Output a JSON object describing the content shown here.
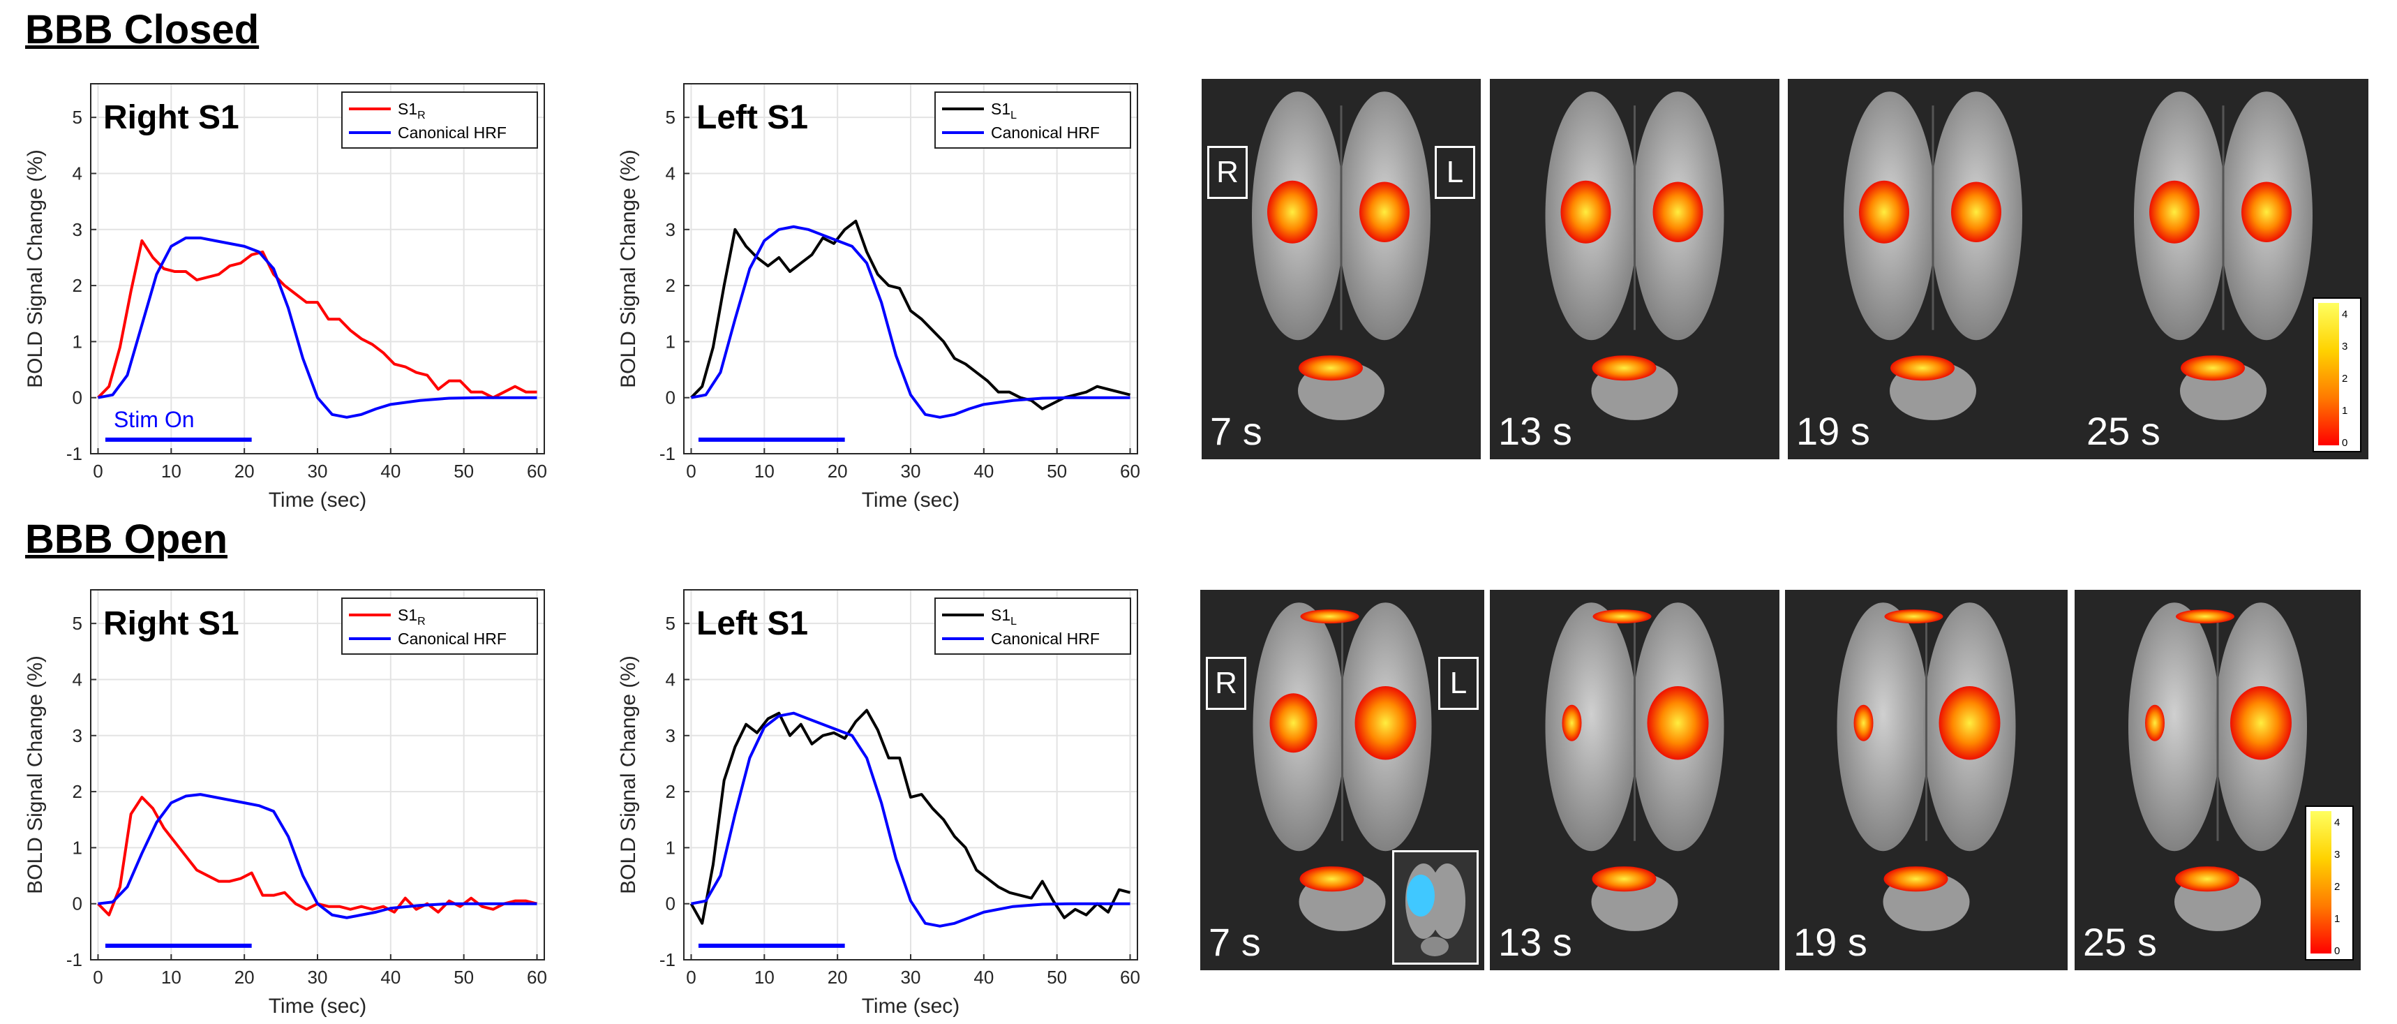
{
  "headings": {
    "closed": "BBB Closed",
    "open": "BBB Open"
  },
  "colors": {
    "red": "#ff0000",
    "blue": "#0000ff",
    "black": "#000000",
    "stim": "#0000ff"
  },
  "chart_data": [
    {
      "id": "closed-right",
      "type": "line",
      "panel_label": "Right S1",
      "xlabel": "Time (sec)",
      "ylabel": "BOLD Signal Change (%)",
      "xlim": [
        -1,
        61
      ],
      "ylim": [
        -1,
        5.6
      ],
      "xticks": [
        0,
        10,
        20,
        30,
        40,
        50,
        60
      ],
      "yticks": [
        -1,
        0,
        1,
        2,
        3,
        4,
        5
      ],
      "stim": {
        "start": 1,
        "end": 21,
        "y": -0.75,
        "label": "Stim On"
      },
      "series": [
        {
          "name": "S1",
          "sub": "R",
          "color": "#ff0000",
          "x": [
            0,
            1.5,
            3,
            4.5,
            6,
            7.5,
            9,
            10.5,
            12,
            13.5,
            15,
            16.5,
            18,
            19.5,
            21,
            22.5,
            24,
            25.5,
            27,
            28.5,
            30,
            31.5,
            33,
            34.5,
            36,
            37.5,
            39,
            40.5,
            42,
            43.5,
            45,
            46.5,
            48,
            49.5,
            51,
            52.5,
            54,
            55.5,
            57,
            58.5,
            60
          ],
          "y": [
            0,
            0.2,
            0.9,
            1.9,
            2.8,
            2.5,
            2.3,
            2.25,
            2.25,
            2.1,
            2.15,
            2.2,
            2.35,
            2.4,
            2.55,
            2.6,
            2.2,
            2.0,
            1.85,
            1.7,
            1.7,
            1.4,
            1.4,
            1.2,
            1.05,
            0.95,
            0.8,
            0.6,
            0.55,
            0.45,
            0.4,
            0.15,
            0.3,
            0.3,
            0.1,
            0.1,
            0.0,
            0.1,
            0.2,
            0.1,
            0.1
          ]
        },
        {
          "name": "Canonical HRF",
          "sub": "",
          "color": "#0000ff",
          "x": [
            0,
            2,
            4,
            6,
            8,
            10,
            12,
            14,
            16,
            18,
            20,
            22,
            24,
            26,
            28,
            30,
            32,
            34,
            36,
            38,
            40,
            44,
            48,
            52,
            56,
            60
          ],
          "y": [
            0,
            0.05,
            0.4,
            1.3,
            2.2,
            2.7,
            2.85,
            2.85,
            2.8,
            2.75,
            2.7,
            2.6,
            2.3,
            1.6,
            0.7,
            0.0,
            -0.3,
            -0.35,
            -0.3,
            -0.2,
            -0.12,
            -0.05,
            -0.01,
            0,
            0,
            0
          ]
        }
      ]
    },
    {
      "id": "closed-left",
      "type": "line",
      "panel_label": "Left S1",
      "xlabel": "Time (sec)",
      "ylabel": "BOLD Signal Change (%)",
      "xlim": [
        -1,
        61
      ],
      "ylim": [
        -1,
        5.6
      ],
      "xticks": [
        0,
        10,
        20,
        30,
        40,
        50,
        60
      ],
      "yticks": [
        -1,
        0,
        1,
        2,
        3,
        4,
        5
      ],
      "stim": {
        "start": 1,
        "end": 21,
        "y": -0.75,
        "label": ""
      },
      "series": [
        {
          "name": "S1",
          "sub": "L",
          "color": "#000000",
          "x": [
            0,
            1.5,
            3,
            4.5,
            6,
            7.5,
            9,
            10.5,
            12,
            13.5,
            15,
            16.5,
            18,
            19.5,
            21,
            22.5,
            24,
            25.5,
            27,
            28.5,
            30,
            31.5,
            33,
            34.5,
            36,
            37.5,
            39,
            40.5,
            42,
            43.5,
            45,
            46.5,
            48,
            49.5,
            51,
            52.5,
            54,
            55.5,
            57,
            58.5,
            60
          ],
          "y": [
            0,
            0.2,
            0.9,
            2.0,
            3.0,
            2.7,
            2.5,
            2.35,
            2.5,
            2.25,
            2.4,
            2.55,
            2.85,
            2.75,
            3.0,
            3.15,
            2.6,
            2.2,
            2.0,
            1.95,
            1.55,
            1.4,
            1.2,
            1.0,
            0.7,
            0.6,
            0.45,
            0.3,
            0.1,
            0.1,
            0.0,
            -0.05,
            -0.2,
            -0.1,
            0.0,
            0.05,
            0.1,
            0.2,
            0.15,
            0.1,
            0.05
          ]
        },
        {
          "name": "Canonical HRF",
          "sub": "",
          "color": "#0000ff",
          "x": [
            0,
            2,
            4,
            6,
            8,
            10,
            12,
            14,
            16,
            18,
            20,
            22,
            24,
            26,
            28,
            30,
            32,
            34,
            36,
            38,
            40,
            44,
            48,
            52,
            56,
            60
          ],
          "y": [
            0,
            0.05,
            0.45,
            1.4,
            2.3,
            2.8,
            3.0,
            3.05,
            3.0,
            2.9,
            2.8,
            2.7,
            2.4,
            1.7,
            0.75,
            0.05,
            -0.3,
            -0.35,
            -0.3,
            -0.2,
            -0.12,
            -0.05,
            -0.01,
            0,
            0,
            0
          ]
        }
      ]
    },
    {
      "id": "open-right",
      "type": "line",
      "panel_label": "Right S1",
      "xlabel": "Time (sec)",
      "ylabel": "BOLD Signal Change (%)",
      "xlim": [
        -1,
        61
      ],
      "ylim": [
        -1,
        5.6
      ],
      "xticks": [
        0,
        10,
        20,
        30,
        40,
        50,
        60
      ],
      "yticks": [
        -1,
        0,
        1,
        2,
        3,
        4,
        5
      ],
      "stim": {
        "start": 1,
        "end": 21,
        "y": -0.75,
        "label": ""
      },
      "series": [
        {
          "name": "S1",
          "sub": "R",
          "color": "#ff0000",
          "x": [
            0,
            1.5,
            3,
            4.5,
            6,
            7.5,
            9,
            10.5,
            12,
            13.5,
            15,
            16.5,
            18,
            19.5,
            21,
            22.5,
            24,
            25.5,
            27,
            28.5,
            30,
            31.5,
            33,
            34.5,
            36,
            37.5,
            39,
            40.5,
            42,
            43.5,
            45,
            46.5,
            48,
            49.5,
            51,
            52.5,
            54,
            55.5,
            57,
            58.5,
            60
          ],
          "y": [
            0,
            -0.2,
            0.3,
            1.6,
            1.9,
            1.7,
            1.35,
            1.1,
            0.85,
            0.6,
            0.5,
            0.4,
            0.4,
            0.45,
            0.55,
            0.15,
            0.15,
            0.2,
            0.0,
            -0.1,
            0.0,
            -0.05,
            -0.05,
            -0.1,
            -0.05,
            -0.1,
            -0.05,
            -0.15,
            0.1,
            -0.1,
            0.0,
            -0.15,
            0.05,
            -0.05,
            0.1,
            -0.05,
            -0.1,
            0.0,
            0.05,
            0.05,
            0.0
          ]
        },
        {
          "name": "Canonical HRF",
          "sub": "",
          "color": "#0000ff",
          "x": [
            0,
            2,
            4,
            6,
            8,
            10,
            12,
            14,
            16,
            18,
            20,
            22,
            24,
            26,
            28,
            30,
            32,
            34,
            36,
            38,
            40,
            44,
            48,
            52,
            56,
            60
          ],
          "y": [
            0,
            0.03,
            0.3,
            0.9,
            1.45,
            1.8,
            1.92,
            1.95,
            1.9,
            1.85,
            1.8,
            1.75,
            1.65,
            1.2,
            0.5,
            0.0,
            -0.2,
            -0.25,
            -0.2,
            -0.15,
            -0.08,
            -0.03,
            0,
            0,
            0,
            0
          ]
        }
      ]
    },
    {
      "id": "open-left",
      "type": "line",
      "panel_label": "Left S1",
      "xlabel": "Time (sec)",
      "ylabel": "BOLD Signal Change (%)",
      "xlim": [
        -1,
        61
      ],
      "ylim": [
        -1,
        5.6
      ],
      "xticks": [
        0,
        10,
        20,
        30,
        40,
        50,
        60
      ],
      "yticks": [
        -1,
        0,
        1,
        2,
        3,
        4,
        5
      ],
      "stim": {
        "start": 1,
        "end": 21,
        "y": -0.75,
        "label": ""
      },
      "series": [
        {
          "name": "S1",
          "sub": "L",
          "color": "#000000",
          "x": [
            0,
            1.5,
            3,
            4.5,
            6,
            7.5,
            9,
            10.5,
            12,
            13.5,
            15,
            16.5,
            18,
            19.5,
            21,
            22.5,
            24,
            25.5,
            27,
            28.5,
            30,
            31.5,
            33,
            34.5,
            36,
            37.5,
            39,
            40.5,
            42,
            43.5,
            45,
            46.5,
            48,
            49.5,
            51,
            52.5,
            54,
            55.5,
            57,
            58.5,
            60
          ],
          "y": [
            0,
            -0.35,
            0.7,
            2.2,
            2.8,
            3.2,
            3.05,
            3.3,
            3.4,
            3.0,
            3.2,
            2.85,
            3.0,
            3.05,
            2.95,
            3.25,
            3.45,
            3.1,
            2.6,
            2.6,
            1.9,
            1.95,
            1.7,
            1.5,
            1.2,
            1.0,
            0.6,
            0.45,
            0.3,
            0.2,
            0.15,
            0.1,
            0.4,
            0.05,
            -0.25,
            -0.1,
            -0.2,
            0.0,
            -0.15,
            0.25,
            0.2
          ]
        },
        {
          "name": "Canonical HRF",
          "sub": "",
          "color": "#0000ff",
          "x": [
            0,
            2,
            4,
            6,
            8,
            10,
            12,
            14,
            16,
            18,
            20,
            22,
            24,
            26,
            28,
            30,
            32,
            34,
            36,
            38,
            40,
            44,
            48,
            52,
            56,
            60
          ],
          "y": [
            0,
            0.05,
            0.5,
            1.6,
            2.6,
            3.15,
            3.35,
            3.4,
            3.3,
            3.2,
            3.1,
            3.0,
            2.6,
            1.8,
            0.8,
            0.05,
            -0.35,
            -0.4,
            -0.35,
            -0.25,
            -0.15,
            -0.05,
            -0.01,
            0,
            0,
            0
          ]
        }
      ]
    }
  ],
  "brain_rows": {
    "closed": [
      {
        "time": "7 s"
      },
      {
        "time": "13 s"
      },
      {
        "time": "19 s"
      },
      {
        "time": "25 s"
      }
    ],
    "open": [
      {
        "time": "7 s"
      },
      {
        "time": "13 s"
      },
      {
        "time": "19 s"
      },
      {
        "time": "25 s"
      }
    ]
  },
  "orientation": {
    "right": "R",
    "left": "L"
  },
  "colorbar_ticks": [
    "4",
    "3",
    "2",
    "1",
    "0"
  ]
}
